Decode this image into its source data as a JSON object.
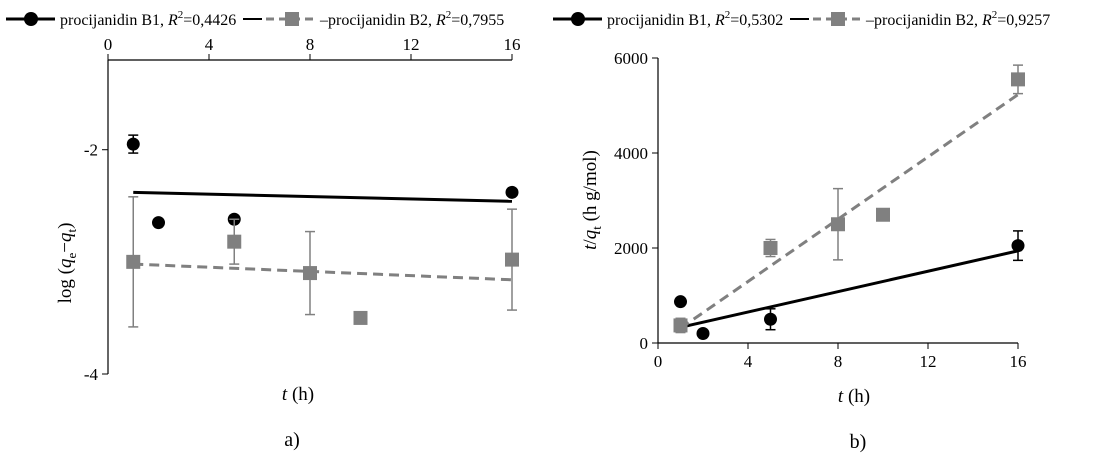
{
  "chart_data": [
    {
      "type": "scatter",
      "panel_label": "a)",
      "xlabel": {
        "var": "t",
        "unit": " (h)"
      },
      "ylabel": {
        "pre": "log (",
        "q1": "q",
        "s1": "e",
        "mid": "−",
        "q2": "q",
        "s2": "t",
        "post": ")"
      },
      "xlim": [
        0,
        16
      ],
      "ylim": [
        -4,
        -1.2
      ],
      "xticks": [
        0,
        4,
        8,
        12,
        16
      ],
      "yticks": [
        -2,
        -4
      ],
      "x_axis_position": "top",
      "y_axis_position": "left",
      "legend_placement": "top",
      "series": [
        {
          "name": "procijanidin B1",
          "r2_text": "=0,4426",
          "marker": "circle",
          "color": "#000000",
          "fit_style": "solid",
          "points": [
            {
              "x": 1,
              "y": -1.95,
              "err": 0.08
            },
            {
              "x": 2,
              "y": -2.65
            },
            {
              "x": 5,
              "y": -2.62
            },
            {
              "x": 16,
              "y": -2.38
            }
          ],
          "fit": [
            [
              1,
              -2.38
            ],
            [
              16,
              -2.46
            ]
          ]
        },
        {
          "name": "procijanidin B2",
          "r2_text": "=0,7955",
          "marker": "square",
          "color": "#808080",
          "fit_style": "dashed",
          "points": [
            {
              "x": 1,
              "y": -3.0,
              "err": 0.58
            },
            {
              "x": 5,
              "y": -2.82,
              "err": 0.2
            },
            {
              "x": 8,
              "y": -3.1,
              "err": 0.37
            },
            {
              "x": 10,
              "y": -3.5
            },
            {
              "x": 16,
              "y": -2.98,
              "err": 0.45
            }
          ],
          "fit": [
            [
              1,
              -3.02
            ],
            [
              16,
              -3.16
            ]
          ]
        }
      ]
    },
    {
      "type": "scatter",
      "panel_label": "b)",
      "xlabel": {
        "var": "t",
        "unit": " (h)"
      },
      "ylabel": {
        "pre": "t",
        "slash": "/",
        "q": "q",
        "sub": "t",
        "post": " (h g/mol)"
      },
      "xlim": [
        0,
        16
      ],
      "ylim": [
        0,
        6000
      ],
      "xticks": [
        0,
        4,
        8,
        12,
        16
      ],
      "yticks": [
        0,
        2000,
        4000,
        6000
      ],
      "legend_placement": "top",
      "series": [
        {
          "name": "procijanidin B1",
          "r2_text": "=0,5302",
          "marker": "circle",
          "color": "#000000",
          "fit_style": "solid",
          "points": [
            {
              "x": 1,
              "y": 870
            },
            {
              "x": 2,
              "y": 200
            },
            {
              "x": 5,
              "y": 500,
              "err": 220
            },
            {
              "x": 16,
              "y": 2050,
              "err": 310
            }
          ],
          "fit": [
            [
              1,
              330
            ],
            [
              16,
              1940
            ]
          ]
        },
        {
          "name": "procijanidin B2",
          "r2_text": "=0,9257",
          "marker": "square",
          "color": "#808080",
          "fit_style": "dashed",
          "points": [
            {
              "x": 1,
              "y": 370,
              "err": 150
            },
            {
              "x": 5,
              "y": 2000,
              "err": 180
            },
            {
              "x": 8,
              "y": 2500,
              "err": 750
            },
            {
              "x": 10,
              "y": 2700
            },
            {
              "x": 16,
              "y": 5550,
              "err": 300
            }
          ],
          "fit": [
            [
              1,
              310
            ],
            [
              16,
              5230
            ]
          ]
        }
      ]
    }
  ]
}
